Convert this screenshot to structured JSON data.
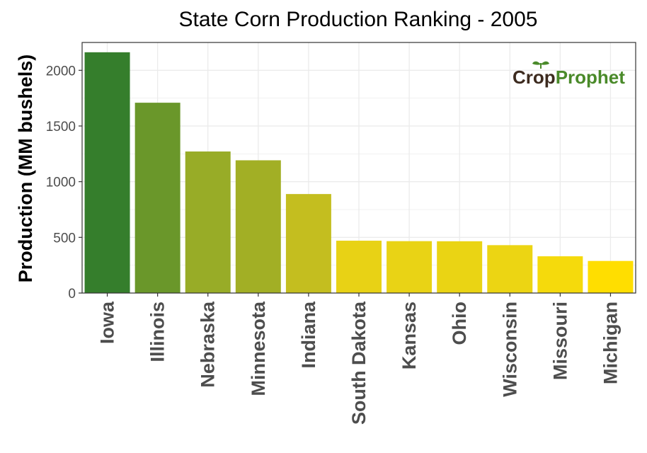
{
  "chart_data": {
    "type": "bar",
    "title": "State Corn Production Ranking - 2005",
    "xlabel": "",
    "ylabel": "Production (MM bushels)",
    "ylim": [
      0,
      2250
    ],
    "yticks": [
      0,
      500,
      1000,
      1500,
      2000
    ],
    "grid": true,
    "categories": [
      "Iowa",
      "Illinois",
      "Nebraska",
      "Minnesota",
      "Indiana",
      "South Dakota",
      "Kansas",
      "Ohio",
      "Wisconsin",
      "Missouri",
      "Michigan"
    ],
    "values": [
      2162,
      1709,
      1271,
      1192,
      889,
      470,
      466,
      465,
      430,
      330,
      288
    ],
    "colors": [
      "#357E2C",
      "#6A972A",
      "#98AC27",
      "#A2AF25",
      "#C4BE1F",
      "#E8D215",
      "#E9D315",
      "#EAD414",
      "#ECD513",
      "#F5DA0C",
      "#FFDE00"
    ],
    "grid_color": "#ebebeb",
    "axis_color": "#333333"
  },
  "logo": {
    "part1": "Cr",
    "part2": "p",
    "part3": "Prophet",
    "dark_color": "#3D2B1F",
    "green_color": "#4A8A2A"
  }
}
